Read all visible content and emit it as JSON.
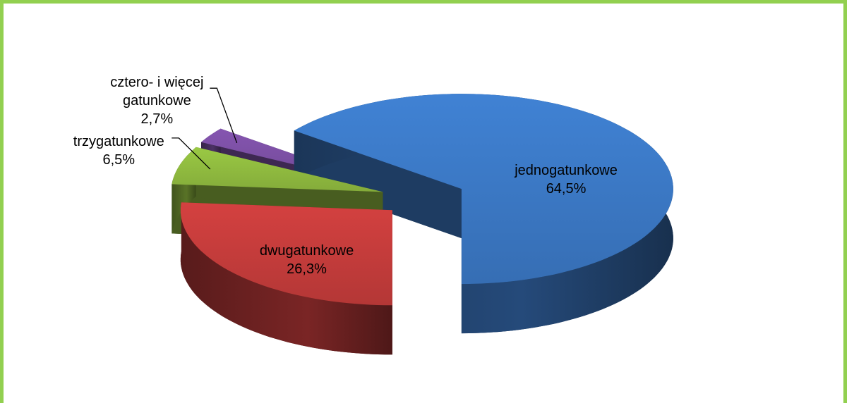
{
  "chart_data": {
    "type": "pie",
    "categories": [
      "jednogatunkowe",
      "dwugatunkowe",
      "trzygatunkowe",
      "cztero- i więcej gatunkowe"
    ],
    "values": [
      64.5,
      26.3,
      6.5,
      2.7
    ],
    "value_labels": [
      "64,5%",
      "26,3%",
      "6,5%",
      "2,7%"
    ],
    "colors": [
      "#3b78c4",
      "#c43c3b",
      "#8fba3f",
      "#7b4fa3"
    ],
    "exploded": true,
    "three_d": true
  }
}
